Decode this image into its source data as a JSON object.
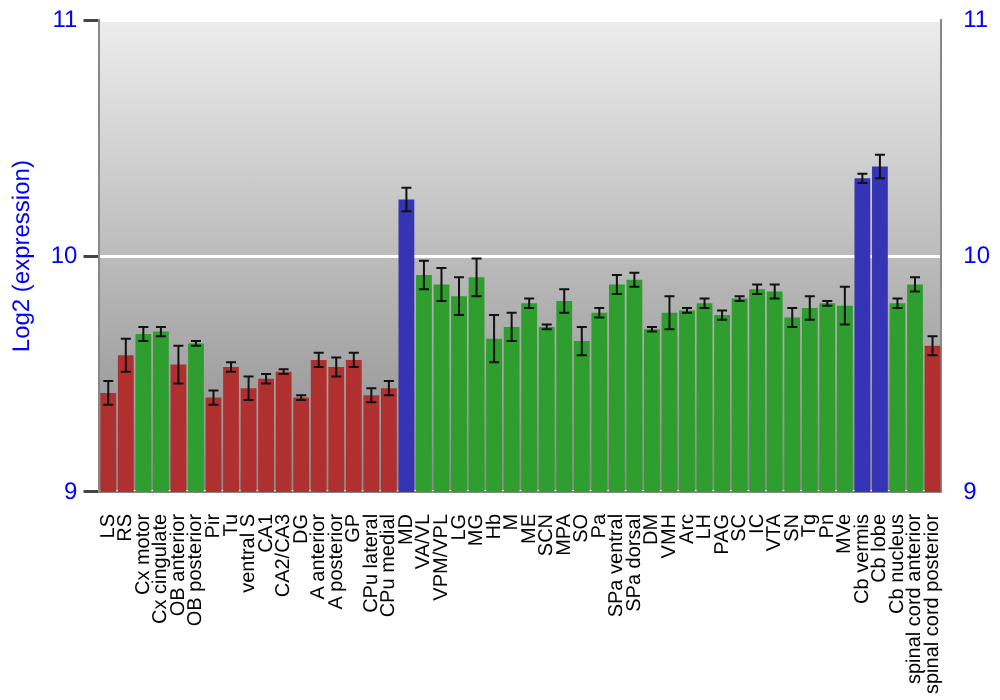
{
  "chart_data": {
    "type": "bar",
    "ylabel": "Log2 (expression)",
    "categories": [
      "LS",
      "RS",
      "Cx motor",
      "Cx cingulate",
      "OB anterior",
      "OB posterior",
      "Pir",
      "Tu",
      "ventral S",
      "CA1",
      "CA2/CA3",
      "DG",
      "A anterior",
      "A posterior",
      "GP",
      "CPu lateral",
      "CPu medial",
      "MD",
      "VA/VL",
      "VPM/VPL",
      "LG",
      "MG",
      "Hb",
      "M",
      "ME",
      "SCN",
      "MPA",
      "SO",
      "Pa",
      "SPa ventral",
      "SPa dorsal",
      "DM",
      "VMH",
      "Arc",
      "LH",
      "PAG",
      "SC",
      "IC",
      "VTA",
      "SN",
      "Tg",
      "Pn",
      "MVe",
      "Cb vermis",
      "Cb lobe",
      "Cb nucleus",
      "spinal cord anterior",
      "spinal cord posterior"
    ],
    "values": [
      9.42,
      9.58,
      9.67,
      9.68,
      9.54,
      9.63,
      9.4,
      9.53,
      9.44,
      9.48,
      9.51,
      9.4,
      9.56,
      9.53,
      9.56,
      9.41,
      9.44,
      10.24,
      9.92,
      9.88,
      9.83,
      9.91,
      9.65,
      9.7,
      9.8,
      9.7,
      9.81,
      9.64,
      9.76,
      9.88,
      9.9,
      9.69,
      9.76,
      9.77,
      9.8,
      9.75,
      9.82,
      9.86,
      9.85,
      9.74,
      9.78,
      9.8,
      9.79,
      10.33,
      10.38,
      9.8,
      9.88,
      9.62
    ],
    "errors": [
      0.05,
      0.07,
      0.03,
      0.02,
      0.08,
      0.01,
      0.03,
      0.02,
      0.05,
      0.02,
      0.01,
      0.01,
      0.03,
      0.04,
      0.03,
      0.03,
      0.03,
      0.05,
      0.06,
      0.07,
      0.08,
      0.08,
      0.1,
      0.06,
      0.02,
      0.01,
      0.05,
      0.06,
      0.02,
      0.04,
      0.03,
      0.01,
      0.07,
      0.01,
      0.02,
      0.02,
      0.01,
      0.02,
      0.03,
      0.04,
      0.05,
      0.01,
      0.08,
      0.02,
      0.05,
      0.02,
      0.03,
      0.04
    ],
    "colors": [
      "#b03030",
      "#b03030",
      "#2e9e2e",
      "#2e9e2e",
      "#b03030",
      "#2e9e2e",
      "#b03030",
      "#b03030",
      "#b03030",
      "#b03030",
      "#b03030",
      "#b03030",
      "#b03030",
      "#b03030",
      "#b03030",
      "#b03030",
      "#b03030",
      "#3434b4",
      "#2e9e2e",
      "#2e9e2e",
      "#2e9e2e",
      "#2e9e2e",
      "#2e9e2e",
      "#2e9e2e",
      "#2e9e2e",
      "#2e9e2e",
      "#2e9e2e",
      "#2e9e2e",
      "#2e9e2e",
      "#2e9e2e",
      "#2e9e2e",
      "#2e9e2e",
      "#2e9e2e",
      "#2e9e2e",
      "#2e9e2e",
      "#2e9e2e",
      "#2e9e2e",
      "#2e9e2e",
      "#2e9e2e",
      "#2e9e2e",
      "#2e9e2e",
      "#2e9e2e",
      "#2e9e2e",
      "#3434b4",
      "#3434b4",
      "#2e9e2e",
      "#2e9e2e",
      "#b03030"
    ],
    "ylim": [
      9,
      11
    ],
    "yticks": [
      9,
      10,
      11
    ],
    "y2lim": [
      9,
      11
    ],
    "y2ticks": [
      9,
      10,
      11
    ],
    "grid": "y",
    "legend": false
  }
}
